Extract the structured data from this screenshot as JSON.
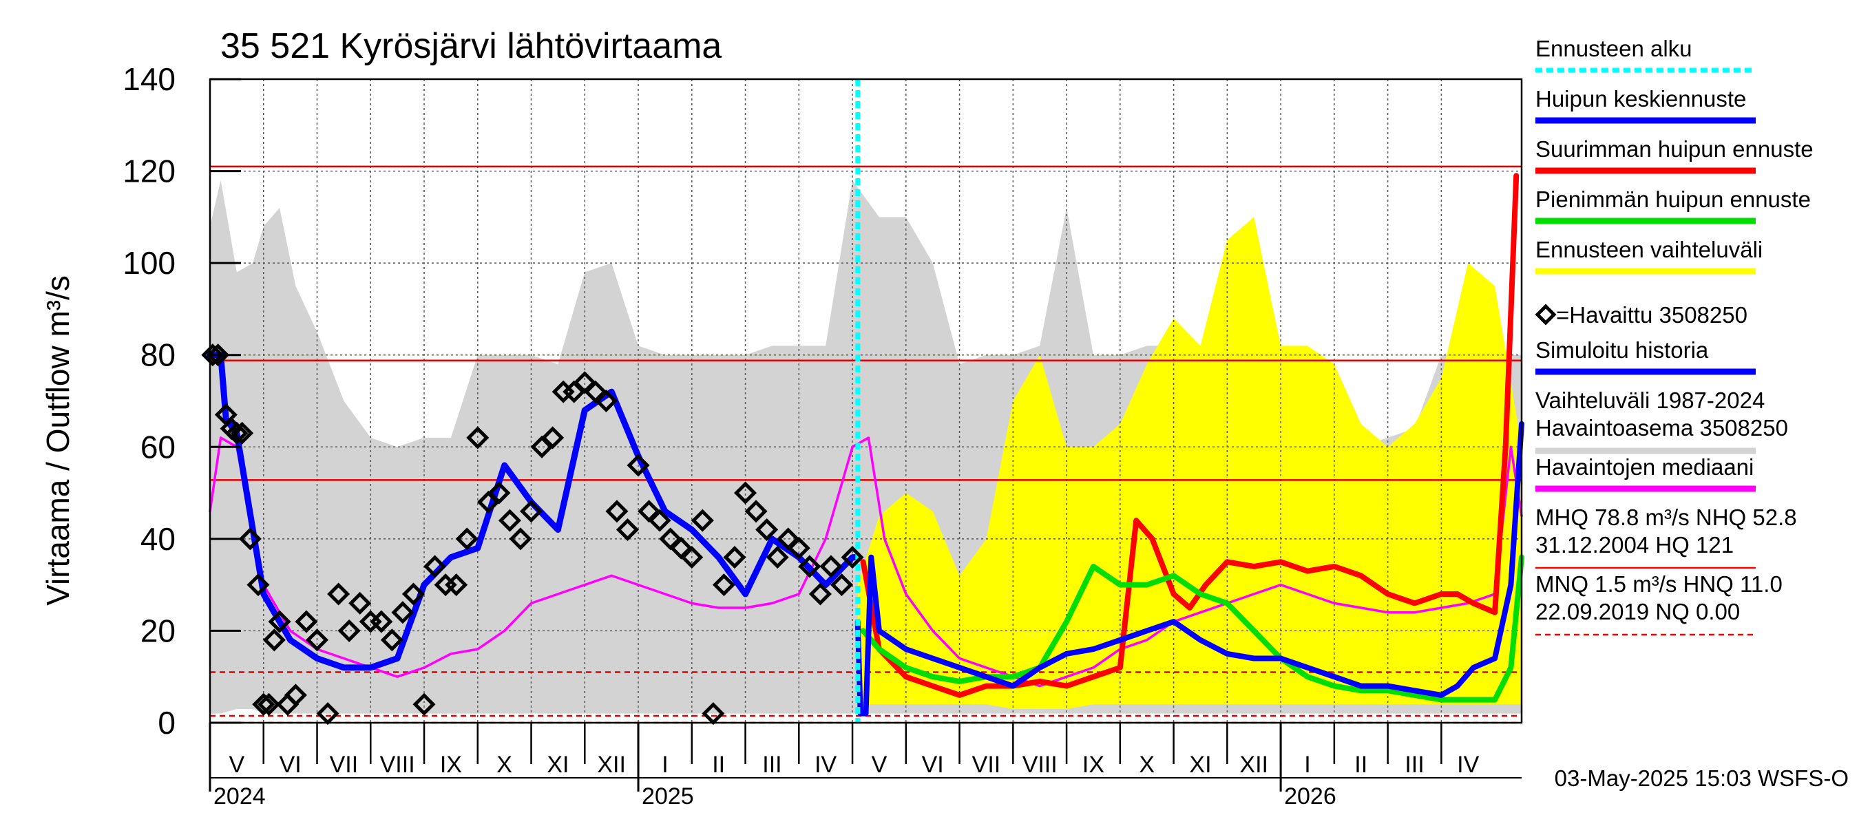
{
  "chart_data": {
    "type": "line",
    "title": "35 521 Kyrösjärvi lähtövirtaama",
    "ylabel": "Virtaama / Outflow    m³/s",
    "ylim": [
      0,
      140
    ],
    "yticks": [
      0,
      20,
      40,
      60,
      80,
      100,
      120,
      140
    ],
    "xrange_months": [
      0,
      24.5
    ],
    "months": [
      {
        "label": "V",
        "start": 0
      },
      {
        "label": "VI",
        "start": 1
      },
      {
        "label": "VII",
        "start": 2
      },
      {
        "label": "VIII",
        "start": 3
      },
      {
        "label": "IX",
        "start": 4
      },
      {
        "label": "X",
        "start": 5
      },
      {
        "label": "XI",
        "start": 6
      },
      {
        "label": "XII",
        "start": 7
      },
      {
        "label": "I",
        "start": 8
      },
      {
        "label": "II",
        "start": 9
      },
      {
        "label": "III",
        "start": 10
      },
      {
        "label": "IV",
        "start": 11
      },
      {
        "label": "V",
        "start": 12
      },
      {
        "label": "VI",
        "start": 13
      },
      {
        "label": "VII",
        "start": 14
      },
      {
        "label": "VIII",
        "start": 15
      },
      {
        "label": "IX",
        "start": 16
      },
      {
        "label": "X",
        "start": 17
      },
      {
        "label": "XI",
        "start": 18
      },
      {
        "label": "XII",
        "start": 19
      },
      {
        "label": "I",
        "start": 20
      },
      {
        "label": "II",
        "start": 21
      },
      {
        "label": "III",
        "start": 22
      },
      {
        "label": "IV",
        "start": 23
      }
    ],
    "years": [
      {
        "label": "2024",
        "month_pos": 0
      },
      {
        "label": "2025",
        "month_pos": 8
      },
      {
        "label": "2026",
        "month_pos": 20
      }
    ],
    "forecast_start_month": 12.1,
    "reference_lines": [
      {
        "name": "HQ",
        "value": 121,
        "style": "solid"
      },
      {
        "name": "MHQ",
        "value": 78.8,
        "style": "solid"
      },
      {
        "name": "NHQ",
        "value": 52.8,
        "style": "solid"
      },
      {
        "name": "HNQ",
        "value": 11.0,
        "style": "dashed"
      },
      {
        "name": "MNQ",
        "value": 1.5,
        "style": "dashed"
      },
      {
        "name": "NQ",
        "value": 0.0,
        "style": "dashed"
      }
    ],
    "series": [
      {
        "name": "Vaihteluväli 1987-2024 Havaintoasema 3508250",
        "kind": "band",
        "color": "#d3d3d3",
        "x": [
          0,
          0.2,
          0.5,
          0.8,
          1.0,
          1.3,
          1.6,
          2.0,
          2.5,
          3.0,
          3.5,
          4.0,
          4.5,
          5.0,
          5.5,
          6.0,
          6.5,
          7.0,
          7.5,
          8.0,
          8.5,
          9.0,
          9.5,
          10.0,
          10.5,
          11.0,
          11.5,
          12.0,
          12.5,
          13.0,
          13.5,
          14.0,
          14.5,
          15.0,
          15.5,
          16.0,
          16.5,
          17.0,
          17.5,
          18.0,
          18.5,
          19.0,
          19.5,
          20.0,
          20.5,
          21.0,
          21.5,
          22.0,
          22.5,
          23.0,
          23.5,
          24.0,
          24.5
        ],
        "upper": [
          108,
          118,
          98,
          100,
          108,
          112,
          95,
          85,
          70,
          62,
          60,
          62,
          62,
          80,
          80,
          80,
          78,
          98,
          100,
          82,
          80,
          80,
          80,
          80,
          82,
          82,
          82,
          118,
          110,
          110,
          100,
          78,
          80,
          80,
          82,
          112,
          80,
          80,
          82,
          82,
          80,
          80,
          80,
          80,
          62,
          62,
          60,
          62,
          64,
          80,
          80,
          80,
          80
        ],
        "lower": [
          2,
          2,
          3,
          3,
          2,
          2,
          2,
          2,
          2,
          2,
          2,
          2,
          2,
          2,
          2,
          2,
          2,
          2,
          2,
          2,
          2,
          2,
          2,
          2,
          2,
          2,
          2,
          2,
          2,
          2,
          2,
          2,
          2,
          2,
          2,
          2,
          2,
          2,
          2,
          2,
          2,
          2,
          2,
          2,
          2,
          2,
          2,
          2,
          2,
          2,
          2,
          2,
          2
        ]
      },
      {
        "name": "Ennusteen vaihteluväli",
        "kind": "band",
        "color": "#ffff00",
        "x": [
          12.1,
          12.5,
          13.0,
          13.5,
          14.0,
          14.5,
          15.0,
          15.5,
          16.0,
          16.5,
          17.0,
          17.5,
          18.0,
          18.5,
          19.0,
          19.5,
          20.0,
          20.5,
          21.0,
          21.5,
          22.0,
          22.5,
          23.0,
          23.5,
          24.0,
          24.5
        ],
        "upper": [
          30,
          45,
          50,
          46,
          32,
          40,
          70,
          80,
          60,
          60,
          65,
          78,
          88,
          82,
          105,
          110,
          82,
          82,
          78,
          65,
          60,
          65,
          75,
          100,
          95,
          60
        ],
        "lower": [
          4,
          4,
          4,
          4,
          4,
          4,
          3,
          3,
          3,
          4,
          4,
          4,
          4,
          4,
          4,
          4,
          4,
          4,
          4,
          4,
          4,
          4,
          4,
          4,
          4,
          4
        ]
      },
      {
        "name": "Havaintojen mediaani",
        "kind": "line",
        "color": "#ff00ff",
        "x": [
          0,
          0.2,
          0.5,
          0.8,
          1.0,
          1.5,
          2.0,
          2.5,
          3.0,
          3.5,
          4.0,
          4.5,
          5.0,
          5.5,
          6.0,
          6.5,
          7.0,
          7.5,
          8.0,
          8.5,
          9.0,
          9.5,
          10.0,
          10.5,
          11.0,
          11.5,
          12.0,
          12.3,
          12.6,
          13.0,
          13.5,
          14.0,
          14.5,
          15.0,
          15.5,
          16.0,
          16.5,
          17.0,
          17.5,
          18.0,
          18.5,
          19.0,
          19.5,
          20.0,
          20.5,
          21.0,
          21.5,
          22.0,
          22.5,
          23.0,
          23.5,
          24.0,
          24.3,
          24.5
        ],
        "y": [
          46,
          62,
          60,
          42,
          30,
          20,
          16,
          14,
          12,
          10,
          12,
          15,
          16,
          20,
          26,
          28,
          30,
          32,
          30,
          28,
          26,
          25,
          25,
          26,
          28,
          40,
          60,
          62,
          40,
          28,
          20,
          14,
          12,
          10,
          8,
          10,
          12,
          16,
          18,
          22,
          24,
          26,
          28,
          30,
          28,
          26,
          25,
          24,
          24,
          25,
          26,
          28,
          60,
          45
        ]
      },
      {
        "name": "Simuloitu historia",
        "kind": "line",
        "color": "#0000ff",
        "x": [
          0,
          0.2,
          0.3,
          0.5,
          1.0,
          1.5,
          2.0,
          2.5,
          3.0,
          3.5,
          4.0,
          4.5,
          5.0,
          5.5,
          6.0,
          6.5,
          7.0,
          7.5,
          8.0,
          8.5,
          9.0,
          9.5,
          10.0,
          10.5,
          11.0,
          11.5,
          12.0,
          12.1
        ],
        "y": [
          80,
          80,
          66,
          63,
          28,
          18,
          14,
          12,
          12,
          14,
          30,
          36,
          38,
          56,
          48,
          42,
          68,
          72,
          58,
          46,
          42,
          36,
          28,
          40,
          36,
          30,
          36,
          36
        ]
      },
      {
        "name": "Havaittu 3508250",
        "kind": "markers",
        "color": "#000000",
        "x": [
          0.05,
          0.15,
          0.3,
          0.4,
          0.5,
          0.6,
          0.75,
          0.9,
          1.0,
          1.1,
          1.2,
          1.3,
          1.45,
          1.6,
          1.8,
          2.0,
          2.2,
          2.4,
          2.6,
          2.8,
          3.0,
          3.2,
          3.4,
          3.6,
          3.8,
          4.0,
          4.2,
          4.4,
          4.6,
          4.8,
          5.0,
          5.2,
          5.4,
          5.6,
          5.8,
          6.0,
          6.2,
          6.4,
          6.6,
          6.8,
          7.0,
          7.2,
          7.4,
          7.6,
          7.8,
          8.0,
          8.2,
          8.4,
          8.6,
          8.8,
          9.0,
          9.2,
          9.4,
          9.6,
          9.8,
          10.0,
          10.2,
          10.4,
          10.6,
          10.8,
          11.0,
          11.2,
          11.4,
          11.6,
          11.8,
          12.0
        ],
        "y": [
          80,
          80,
          67,
          64,
          63,
          63,
          40,
          30,
          4,
          4,
          18,
          22,
          4,
          6,
          22,
          18,
          2,
          28,
          20,
          26,
          22,
          22,
          18,
          24,
          28,
          4,
          34,
          30,
          30,
          40,
          62,
          48,
          50,
          44,
          40,
          46,
          60,
          62,
          72,
          72,
          74,
          72,
          70,
          46,
          42,
          56,
          46,
          44,
          40,
          38,
          36,
          44,
          2,
          30,
          36,
          50,
          46,
          42,
          36,
          40,
          38,
          34,
          28,
          34,
          30,
          36
        ]
      },
      {
        "name": "Suurimman huipun ennuste",
        "kind": "line",
        "color": "#ff0000",
        "x": [
          12.2,
          12.5,
          13.0,
          13.5,
          14.0,
          14.5,
          15.0,
          15.5,
          16.0,
          16.5,
          17.0,
          17.3,
          17.6,
          18.0,
          18.3,
          18.6,
          19.0,
          19.5,
          20.0,
          20.5,
          21.0,
          21.5,
          22.0,
          22.5,
          23.0,
          23.3,
          23.6,
          24.0,
          24.2,
          24.4
        ],
        "y": [
          35,
          16,
          10,
          8,
          6,
          8,
          8,
          9,
          8,
          10,
          12,
          44,
          40,
          28,
          25,
          30,
          35,
          34,
          35,
          33,
          34,
          32,
          28,
          26,
          28,
          28,
          26,
          24,
          60,
          119
        ]
      },
      {
        "name": "Pienimmän huipun ennuste",
        "kind": "line",
        "color": "#00dd00",
        "x": [
          12.2,
          12.5,
          13.0,
          13.5,
          14.0,
          14.5,
          15.0,
          15.5,
          16.0,
          16.5,
          17.0,
          17.5,
          18.0,
          18.5,
          19.0,
          19.5,
          20.0,
          20.5,
          21.0,
          21.5,
          22.0,
          22.5,
          23.0,
          23.5,
          24.0,
          24.3,
          24.5
        ],
        "y": [
          20,
          16,
          12,
          10,
          9,
          10,
          10,
          12,
          22,
          34,
          30,
          30,
          32,
          28,
          26,
          20,
          14,
          10,
          8,
          7,
          7,
          6,
          5,
          5,
          5,
          12,
          36
        ]
      },
      {
        "name": "Huipun keskiennuste",
        "kind": "line",
        "color": "#0000ff",
        "x": [
          12.1,
          12.15,
          12.25,
          12.35,
          12.5,
          13.0,
          13.5,
          14.0,
          14.5,
          15.0,
          15.5,
          16.0,
          16.5,
          17.0,
          17.5,
          18.0,
          18.5,
          19.0,
          19.5,
          20.0,
          20.5,
          21.0,
          21.5,
          22.0,
          22.5,
          23.0,
          23.3,
          23.6,
          24.0,
          24.3,
          24.5
        ],
        "y": [
          22,
          2,
          2,
          36,
          20,
          16,
          14,
          12,
          10,
          8,
          12,
          15,
          16,
          18,
          20,
          22,
          18,
          15,
          14,
          14,
          12,
          10,
          8,
          8,
          7,
          6,
          8,
          12,
          14,
          30,
          65
        ]
      }
    ],
    "legend": [
      {
        "label": "Ennusteen alku",
        "style": "dashed",
        "color": "#00ffff"
      },
      {
        "label": "Huipun keskiennuste",
        "style": "line",
        "color": "#0000ff"
      },
      {
        "label": "Suurimman huipun ennuste",
        "style": "line",
        "color": "#ff0000"
      },
      {
        "label": "Pienimmän huipun ennuste",
        "style": "line",
        "color": "#00dd00"
      },
      {
        "label": "Ennusteen vaihteluväli",
        "style": "line",
        "color": "#ffff00"
      },
      {
        "label": "=Havaittu 3508250",
        "style": "marker",
        "color": "#000000"
      },
      {
        "label": "Simuloitu historia",
        "style": "line",
        "color": "#0000ff"
      },
      {
        "label": "Vaihteluväli 1987-2024",
        "label2": " Havaintoasema 3508250",
        "style": "line",
        "color": "#d3d3d3"
      },
      {
        "label": "Havaintojen mediaani",
        "style": "line",
        "color": "#ff00ff"
      },
      {
        "label": "MHQ 78.8 m³/s NHQ 52.8",
        "label2": "31.12.2004 HQ  121",
        "style": "thin",
        "color": "#ff0000"
      },
      {
        "label": "MNQ  1.5 m³/s HNQ 11.0",
        "label2": "22.09.2019 NQ 0.00",
        "style": "thin-dashed",
        "color": "#ff0000"
      }
    ],
    "footer": "03-May-2025 15:03 WSFS-O"
  }
}
